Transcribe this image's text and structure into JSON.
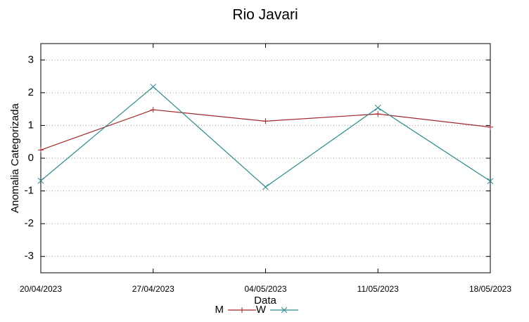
{
  "chart_data": {
    "type": "line",
    "title": "Rio Javari",
    "x_label": "Data",
    "y_label": "Anomalia Categorizada",
    "categories": [
      "20/04/2023",
      "27/04/2023",
      "04/05/2023",
      "11/05/2023",
      "18/05/2023"
    ],
    "series": [
      {
        "name": "M",
        "color": "#a3262a",
        "marker": "+",
        "values": [
          0.25,
          1.48,
          1.13,
          1.35,
          0.95
        ]
      },
      {
        "name": "W",
        "color": "#2a8c8c",
        "marker": "x",
        "values": [
          -0.69,
          2.18,
          -0.88,
          1.54,
          -0.7
        ]
      }
    ],
    "ylim": [
      -3.5,
      3.5
    ],
    "yticks": [
      -3,
      -2,
      -1,
      0,
      1,
      2,
      3
    ],
    "grid": true
  }
}
